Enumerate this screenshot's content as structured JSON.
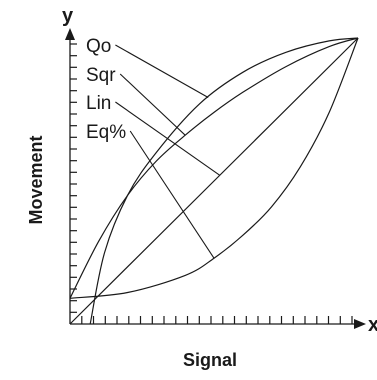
{
  "chart_data": {
    "type": "line",
    "xlabel": "Signal",
    "ylabel": "Movement",
    "x_axis_letter": "x",
    "y_axis_letter": "y",
    "xlim": [
      0,
      1
    ],
    "ylim": [
      0,
      1
    ],
    "series": [
      {
        "name": "Qo",
        "points": [
          [
            0.07,
            0
          ],
          [
            0.12,
            0.25
          ],
          [
            0.2,
            0.45
          ],
          [
            0.3,
            0.6
          ],
          [
            0.45,
            0.77
          ],
          [
            0.6,
            0.88
          ],
          [
            0.75,
            0.95
          ],
          [
            0.9,
            0.99
          ],
          [
            1,
            1
          ]
        ]
      },
      {
        "name": "Sqr",
        "points": [
          [
            0,
            0.09
          ],
          [
            0.1,
            0.29
          ],
          [
            0.2,
            0.45
          ],
          [
            0.3,
            0.57
          ],
          [
            0.4,
            0.66
          ],
          [
            0.5,
            0.74
          ],
          [
            0.6,
            0.81
          ],
          [
            0.75,
            0.9
          ],
          [
            0.9,
            0.97
          ],
          [
            1,
            1
          ]
        ]
      },
      {
        "name": "Lin",
        "points": [
          [
            0,
            0
          ],
          [
            1,
            1
          ]
        ]
      },
      {
        "name": "Eq%",
        "points": [
          [
            0,
            0.09
          ],
          [
            0.2,
            0.11
          ],
          [
            0.4,
            0.17
          ],
          [
            0.5,
            0.23
          ],
          [
            0.6,
            0.31
          ],
          [
            0.7,
            0.41
          ],
          [
            0.8,
            0.55
          ],
          [
            0.9,
            0.74
          ],
          [
            1,
            1
          ]
        ]
      }
    ]
  }
}
